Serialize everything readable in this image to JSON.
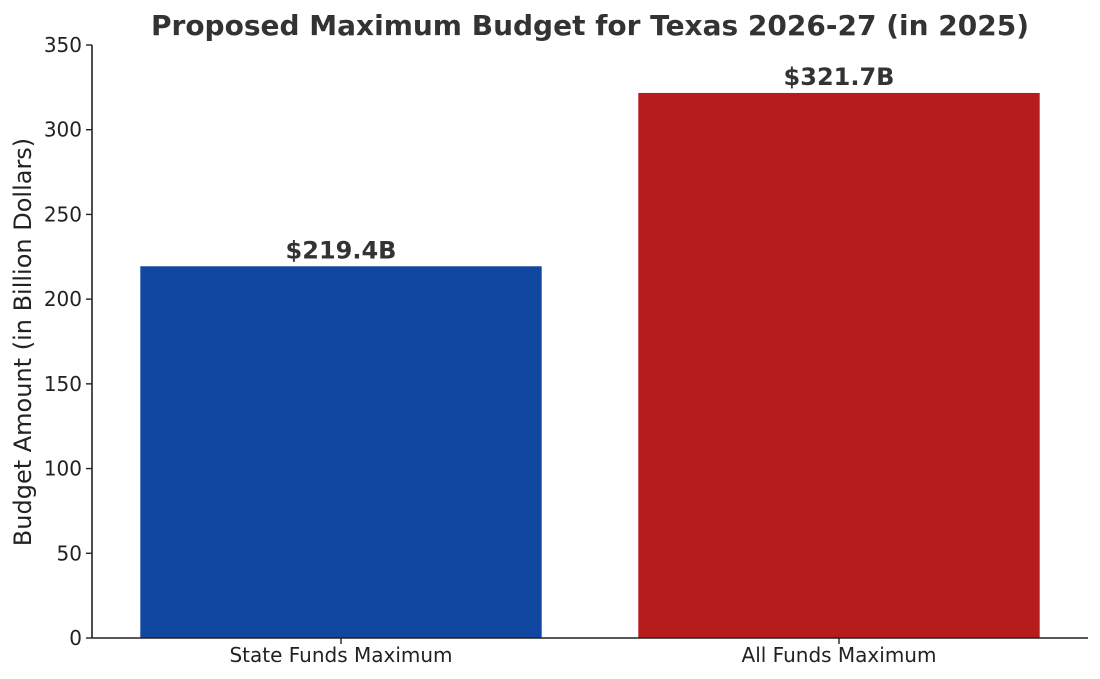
{
  "chart_data": {
    "type": "bar",
    "title": "Proposed Maximum Budget for Texas 2026-27 (in 2025)",
    "xlabel": "",
    "ylabel": "Budget Amount (in Billion Dollars)",
    "categories": [
      "State Funds Maximum",
      "All Funds Maximum"
    ],
    "values": [
      219.4,
      321.7
    ],
    "data_labels": [
      "$219.4B",
      "$321.7B"
    ],
    "colors": [
      "#0f47a1",
      "#b71c1c"
    ],
    "ylim": [
      0,
      350
    ],
    "yticks": [
      0,
      50,
      100,
      150,
      200,
      250,
      300,
      350
    ],
    "grid": false,
    "legend": "none"
  }
}
